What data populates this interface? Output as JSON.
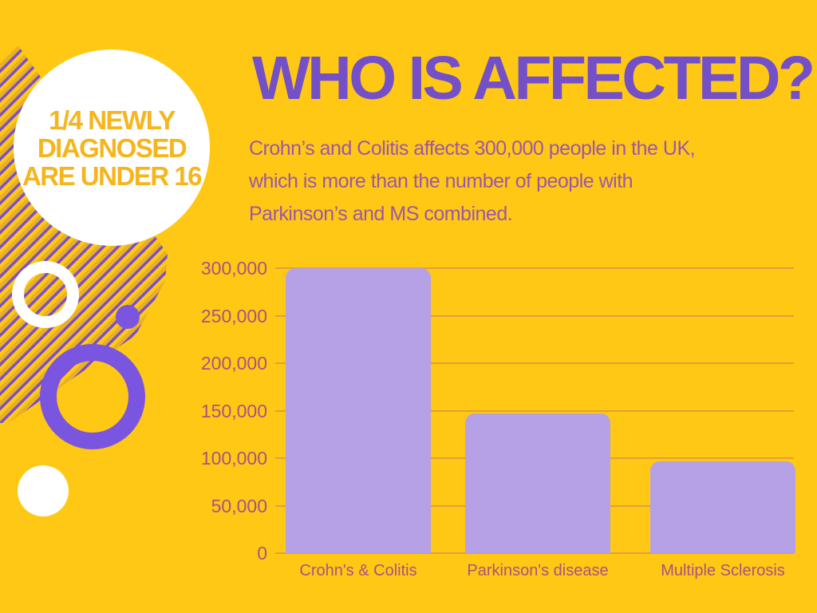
{
  "badge": {
    "lines": [
      "1/4 NEWLY",
      "DIAGNOSED",
      "ARE UNDER 16"
    ]
  },
  "header": {
    "title": "WHO IS AFFECTED?"
  },
  "description": {
    "lines": [
      "Crohn’s and Colitis affects 300,000 people in the UK,",
      "which is more than the number of people with",
      "Parkinson’s and MS combined."
    ]
  },
  "chart_data": {
    "type": "bar",
    "title": "",
    "xlabel": "",
    "ylabel": "",
    "categories": [
      "Crohn's & Colitis",
      "Parkinson's disease",
      "Multiple Sclerosis"
    ],
    "values": [
      300000,
      147000,
      97000
    ],
    "y_ticks": [
      "300,000",
      "250,000",
      "200,000",
      "150,000",
      "100,000",
      "50,000",
      "0"
    ],
    "ylim": [
      0,
      300000
    ],
    "grid": true,
    "legend": "none",
    "bar_color": "#b7a1e6"
  },
  "colors": {
    "background": "#ffc814",
    "title": "#7450c8",
    "body_text": "#9d57a9",
    "axis_text": "#aa5380",
    "bar_fill": "#b7a1e6",
    "gridline": "#aa5380",
    "badge_bg": "#ffffff",
    "badge_text": "#f6b51c",
    "stripe_line": "#7c4fc9",
    "stripe_shadow": "#d9a032",
    "shape_purple": "#7a55e0",
    "shape_white": "#ffffff"
  }
}
